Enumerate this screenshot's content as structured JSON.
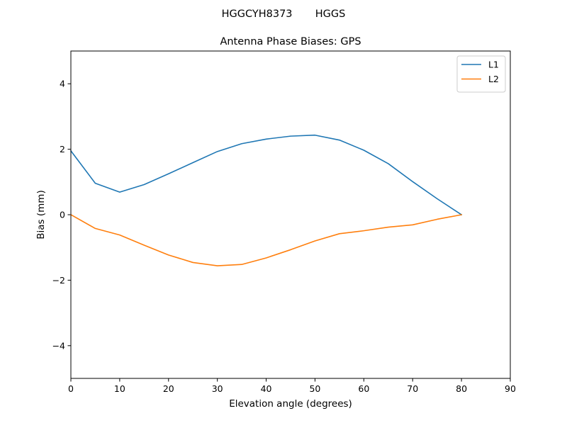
{
  "figure": {
    "suptitle": "HGGCYH8373       HGGS"
  },
  "chart_data": {
    "type": "line",
    "title": "Antenna Phase Biases: GPS",
    "xlabel": "Elevation angle (degrees)",
    "ylabel": "Bias (mm)",
    "xlim": [
      0,
      90
    ],
    "ylim": [
      -5,
      5
    ],
    "xticks": [
      0,
      10,
      20,
      30,
      40,
      50,
      60,
      70,
      80,
      90
    ],
    "xtick_labels": [
      "0",
      "10",
      "20",
      "30",
      "40",
      "50",
      "60",
      "70",
      "80",
      "90"
    ],
    "yticks": [
      4,
      2,
      0,
      -2,
      -4
    ],
    "ytick_labels": [
      "4",
      "2",
      "0",
      "−2",
      "−4"
    ],
    "grid": false,
    "legend_position": "top-right",
    "x": [
      0,
      5,
      10,
      15,
      20,
      25,
      30,
      35,
      40,
      45,
      50,
      55,
      60,
      65,
      70,
      75,
      80
    ],
    "series": [
      {
        "name": "L1",
        "color": "#1f77b4",
        "values": [
          1.95,
          0.96,
          0.69,
          0.92,
          1.25,
          1.59,
          1.93,
          2.17,
          2.31,
          2.4,
          2.43,
          2.28,
          1.97,
          1.56,
          1.01,
          0.49,
          0.0
        ]
      },
      {
        "name": "L2",
        "color": "#ff7f0e",
        "values": [
          0.0,
          -0.42,
          -0.62,
          -0.93,
          -1.23,
          -1.46,
          -1.56,
          -1.52,
          -1.32,
          -1.07,
          -0.8,
          -0.58,
          -0.49,
          -0.38,
          -0.31,
          -0.14,
          0.0
        ]
      }
    ]
  }
}
